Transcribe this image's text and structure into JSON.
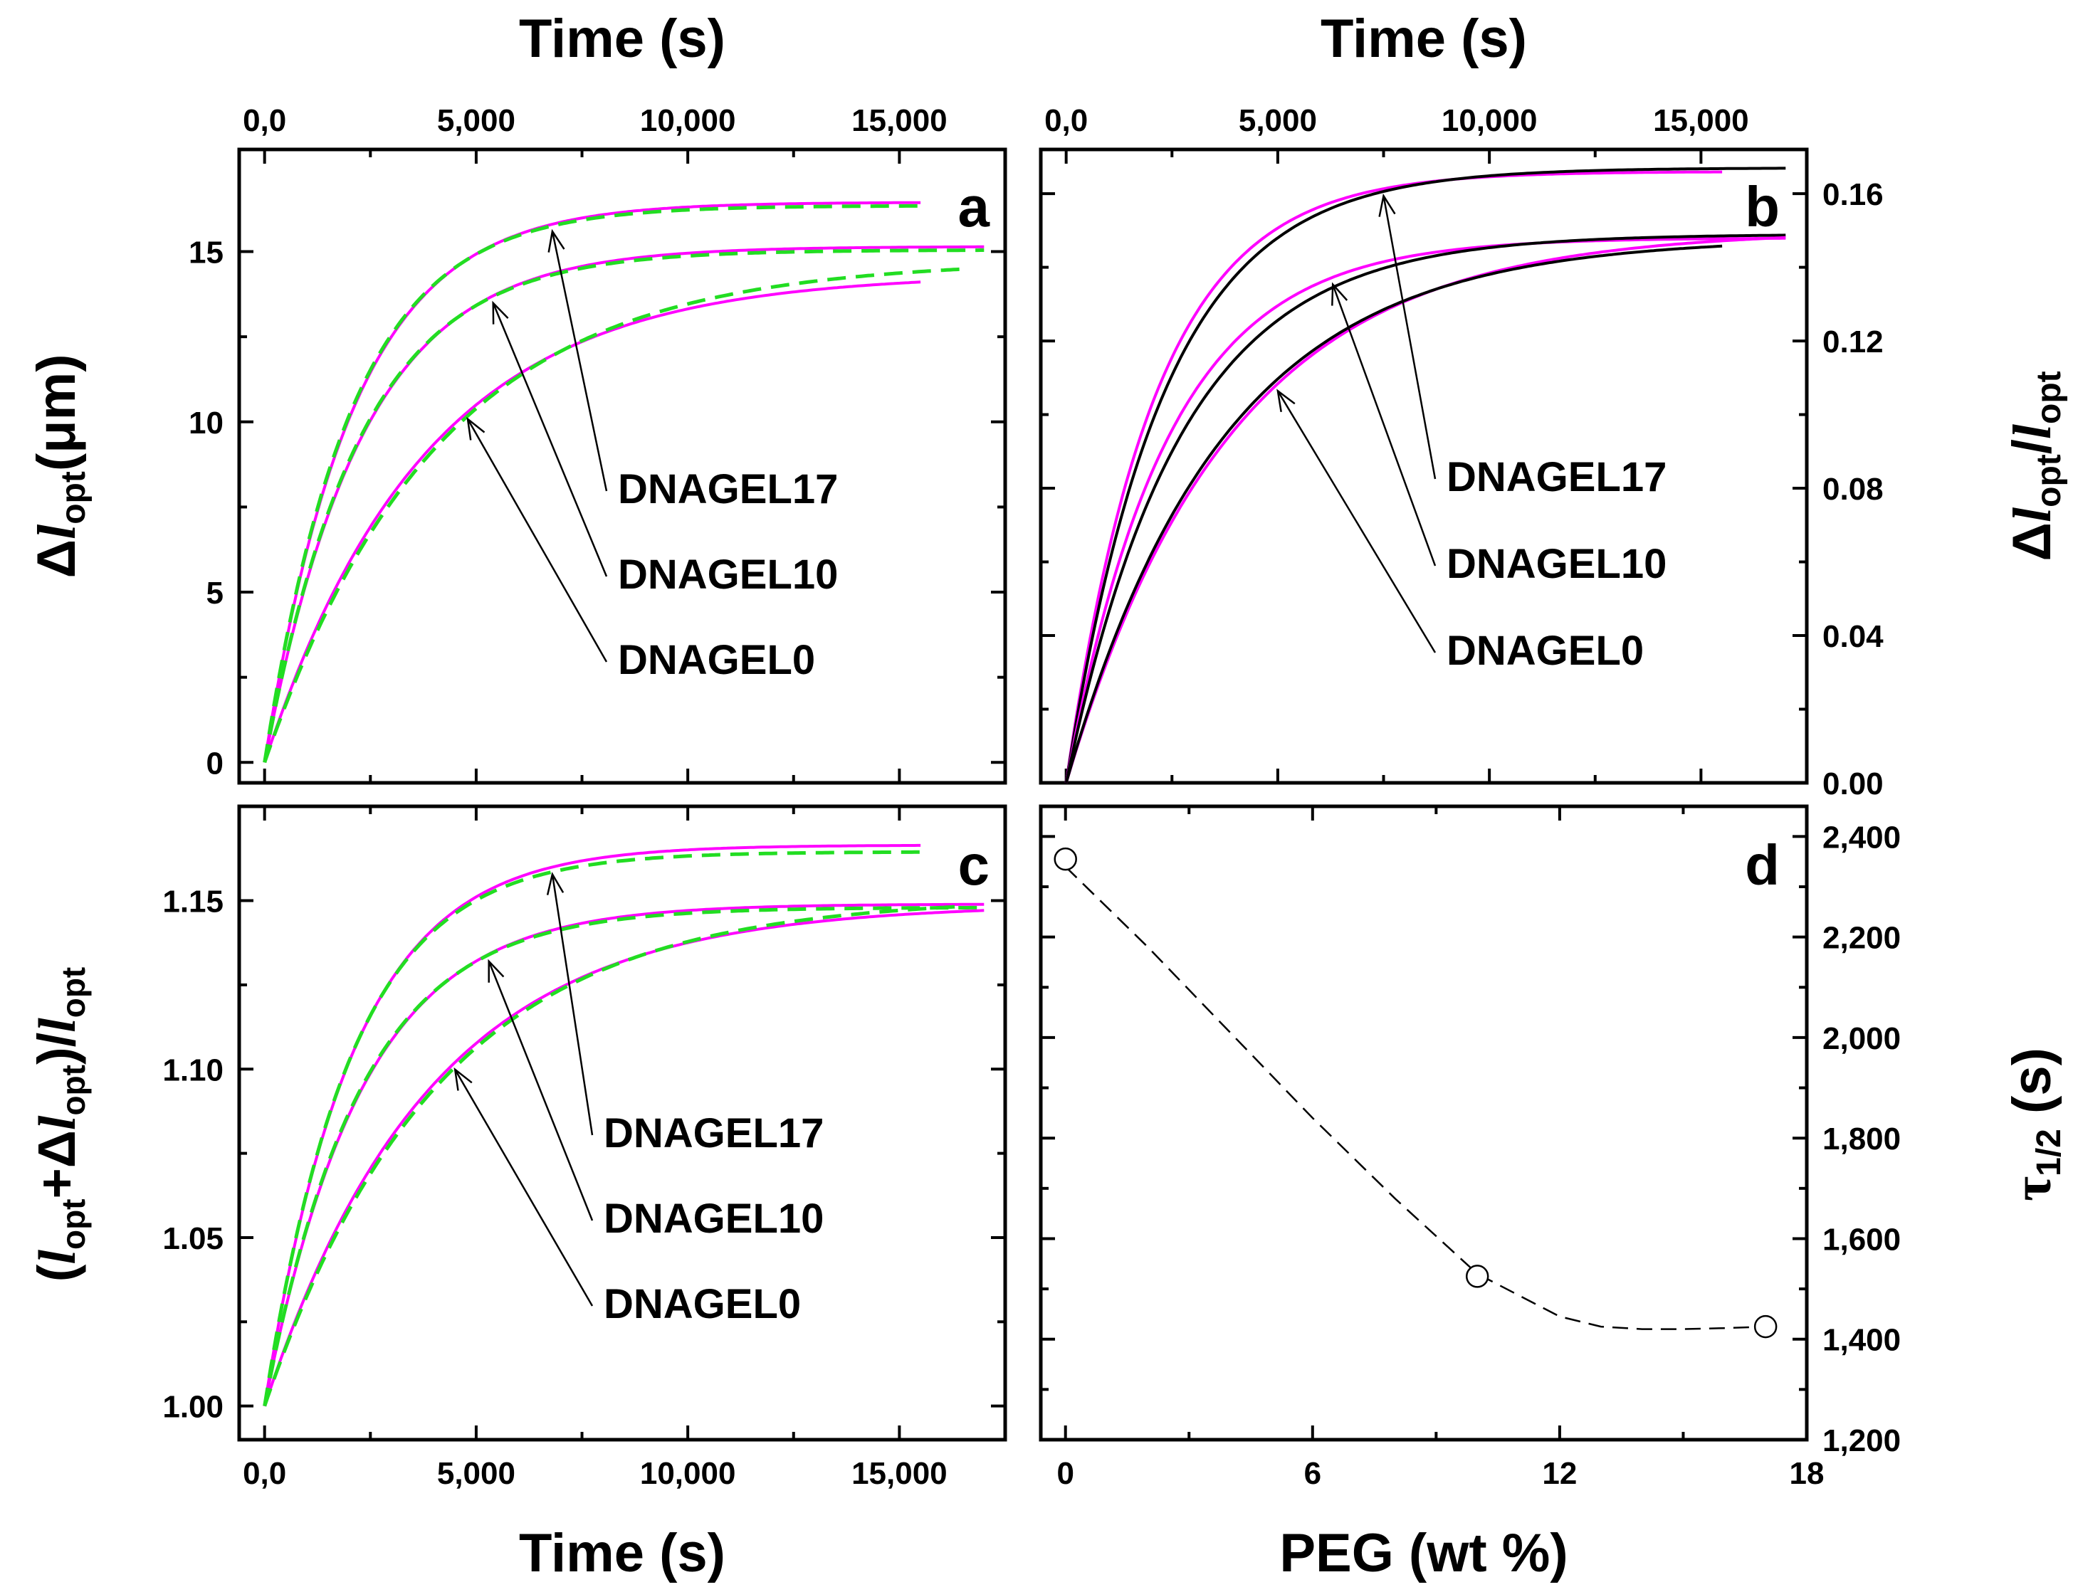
{
  "chart_data": [
    {
      "panel": "a",
      "type": "line",
      "xlabel": "Time (s)",
      "x2label": "Time (s)",
      "ylabel": "Δl_opt(μm)",
      "xlim": [
        -600,
        17500
      ],
      "ylim": [
        -0.6,
        18
      ],
      "xticks": [
        "0,0",
        "5,000",
        "10,000",
        "15,000"
      ],
      "xtickvals": [
        0,
        5000,
        10000,
        15000
      ],
      "yticks": [
        "0",
        "5",
        "10",
        "15"
      ],
      "ytickvals": [
        0,
        5,
        10,
        15
      ],
      "series": [
        {
          "name": "DNAGEL17 measured",
          "color": "#ff00ff",
          "style": "solid",
          "t0": 0,
          "A": 16.45,
          "tau": 2100,
          "tmax": 15500,
          "arrowT": 6800
        },
        {
          "name": "DNAGEL17 fit",
          "color": "#22dd22",
          "style": "dashed",
          "t0": 0,
          "A": 16.35,
          "tau": 2050,
          "tmax": 15500
        },
        {
          "name": "DNAGEL10 measured",
          "color": "#ff00ff",
          "style": "solid",
          "t0": 0,
          "A": 15.15,
          "tau": 2300,
          "tmax": 17000,
          "arrowT": 5400
        },
        {
          "name": "DNAGEL10 fit",
          "color": "#22dd22",
          "style": "dashed",
          "t0": 0,
          "A": 15.05,
          "tau": 2250,
          "tmax": 17000
        },
        {
          "name": "DNAGEL0 measured",
          "color": "#ff00ff",
          "style": "solid",
          "t0": 0,
          "A": 14.35,
          "tau": 3800,
          "tmax": 15500,
          "arrowT": 4800
        },
        {
          "name": "DNAGEL0 fit",
          "color": "#22dd22",
          "style": "dashed",
          "t0": 0,
          "A": 14.75,
          "tau": 4100,
          "tmax": 16500
        }
      ],
      "annotations": [
        "DNAGEL17",
        "DNAGEL10",
        "DNAGEL0"
      ],
      "panel_label": "a"
    },
    {
      "panel": "b",
      "type": "line",
      "x2label": "Time (s)",
      "ylabel": "Δl_opt/l_opt",
      "xlim": [
        -600,
        17500
      ],
      "ylim": [
        0,
        0.172
      ],
      "xticks": [
        "0,0",
        "5,000",
        "10,000",
        "15,000"
      ],
      "xtickvals": [
        0,
        5000,
        10000,
        15000
      ],
      "yticks": [
        "0.00",
        "0.04",
        "0.08",
        "0.12",
        "0.16"
      ],
      "ytickvals": [
        0,
        0.04,
        0.08,
        0.12,
        0.16
      ],
      "series": [
        {
          "name": "DNAGEL17 measured",
          "color": "#ff00ff",
          "style": "solid",
          "t0": 0,
          "A": 0.166,
          "tau": 2100,
          "tmax": 15500,
          "arrowT": 7500
        },
        {
          "name": "DNAGEL17 model",
          "color": "#000000",
          "style": "solid",
          "t0": 0,
          "A": 0.167,
          "tau": 2300,
          "tmax": 17000
        },
        {
          "name": "DNAGEL10 measured",
          "color": "#ff00ff",
          "style": "solid",
          "t0": 0,
          "A": 0.148,
          "tau": 2400,
          "tmax": 17000,
          "arrowT": 6300
        },
        {
          "name": "DNAGEL10 model",
          "color": "#000000",
          "style": "solid",
          "t0": 0,
          "A": 0.149,
          "tau": 2700,
          "tmax": 17000
        },
        {
          "name": "DNAGEL0 measured",
          "color": "#ff00ff",
          "style": "solid",
          "t0": 0,
          "A": 0.15,
          "tau": 3900,
          "tmax": 17000,
          "arrowT": 5000
        },
        {
          "name": "DNAGEL0 model",
          "color": "#000000",
          "style": "solid",
          "t0": 0,
          "A": 0.148,
          "tau": 3700,
          "tmax": 15500
        }
      ],
      "annotations": [
        "DNAGEL17",
        "DNAGEL10",
        "DNAGEL0"
      ],
      "panel_label": "b"
    },
    {
      "panel": "c",
      "type": "line",
      "xlabel": "Time (s)",
      "ylabel": "(l_opt+Δl_opt)/l_opt",
      "xlim": [
        -600,
        17500
      ],
      "ylim": [
        0.99,
        1.178
      ],
      "xticks": [
        "0,0",
        "5,000",
        "10,000",
        "15,000"
      ],
      "xtickvals": [
        0,
        5000,
        10000,
        15000
      ],
      "yticks": [
        "1.00",
        "1.05",
        "1.10",
        "1.15"
      ],
      "ytickvals": [
        1.0,
        1.05,
        1.1,
        1.15
      ],
      "series": [
        {
          "name": "DNAGEL17 measured",
          "color": "#ff00ff",
          "style": "solid",
          "t0": 0,
          "base": 1.0,
          "A": 0.1665,
          "tau": 2100,
          "tmax": 15500,
          "arrowT": 6800
        },
        {
          "name": "DNAGEL17 fit",
          "color": "#22dd22",
          "style": "dashed",
          "t0": 0,
          "base": 1.0,
          "A": 0.1645,
          "tau": 2050,
          "tmax": 15500
        },
        {
          "name": "DNAGEL10 measured",
          "color": "#ff00ff",
          "style": "solid",
          "t0": 0,
          "base": 1.0,
          "A": 0.149,
          "tau": 2300,
          "tmax": 17000,
          "arrowT": 5300
        },
        {
          "name": "DNAGEL10 fit",
          "color": "#22dd22",
          "style": "dashed",
          "t0": 0,
          "base": 1.0,
          "A": 0.148,
          "tau": 2250,
          "tmax": 17000
        },
        {
          "name": "DNAGEL0 measured",
          "color": "#ff00ff",
          "style": "solid",
          "t0": 0,
          "base": 1.0,
          "A": 0.149,
          "tau": 3900,
          "tmax": 17000,
          "arrowT": 4500
        },
        {
          "name": "DNAGEL0 fit",
          "color": "#22dd22",
          "style": "dashed",
          "t0": 0,
          "base": 1.0,
          "A": 0.151,
          "tau": 4100,
          "tmax": 16500
        }
      ],
      "annotations": [
        "DNAGEL17",
        "DNAGEL10",
        "DNAGEL0"
      ],
      "panel_label": "c"
    },
    {
      "panel": "d",
      "type": "scatter",
      "xlabel": "PEG (wt %)",
      "ylabel": "τ1/2 (s)",
      "xlim": [
        -0.6,
        18
      ],
      "ylim": [
        1200,
        2460
      ],
      "xticks": [
        "0",
        "6",
        "12",
        "18"
      ],
      "xtickvals": [
        0,
        6,
        12,
        18
      ],
      "yticks": [
        "1,200",
        "1,400",
        "1,600",
        "1,800",
        "2,000",
        "2,200",
        "2,400"
      ],
      "ytickvals": [
        1200,
        1400,
        1600,
        1800,
        2000,
        2200,
        2400
      ],
      "x": [
        0,
        10,
        17
      ],
      "y": [
        2355,
        1525,
        1425
      ],
      "fit": {
        "style": "dashed",
        "color": "#000000",
        "x": [
          0,
          2,
          4,
          6,
          8,
          10,
          12,
          13,
          14,
          15,
          16,
          17
        ],
        "y": [
          2340,
          2180,
          2010,
          1840,
          1680,
          1530,
          1445,
          1425,
          1420,
          1420,
          1422,
          1425
        ]
      },
      "panel_label": "d"
    }
  ]
}
